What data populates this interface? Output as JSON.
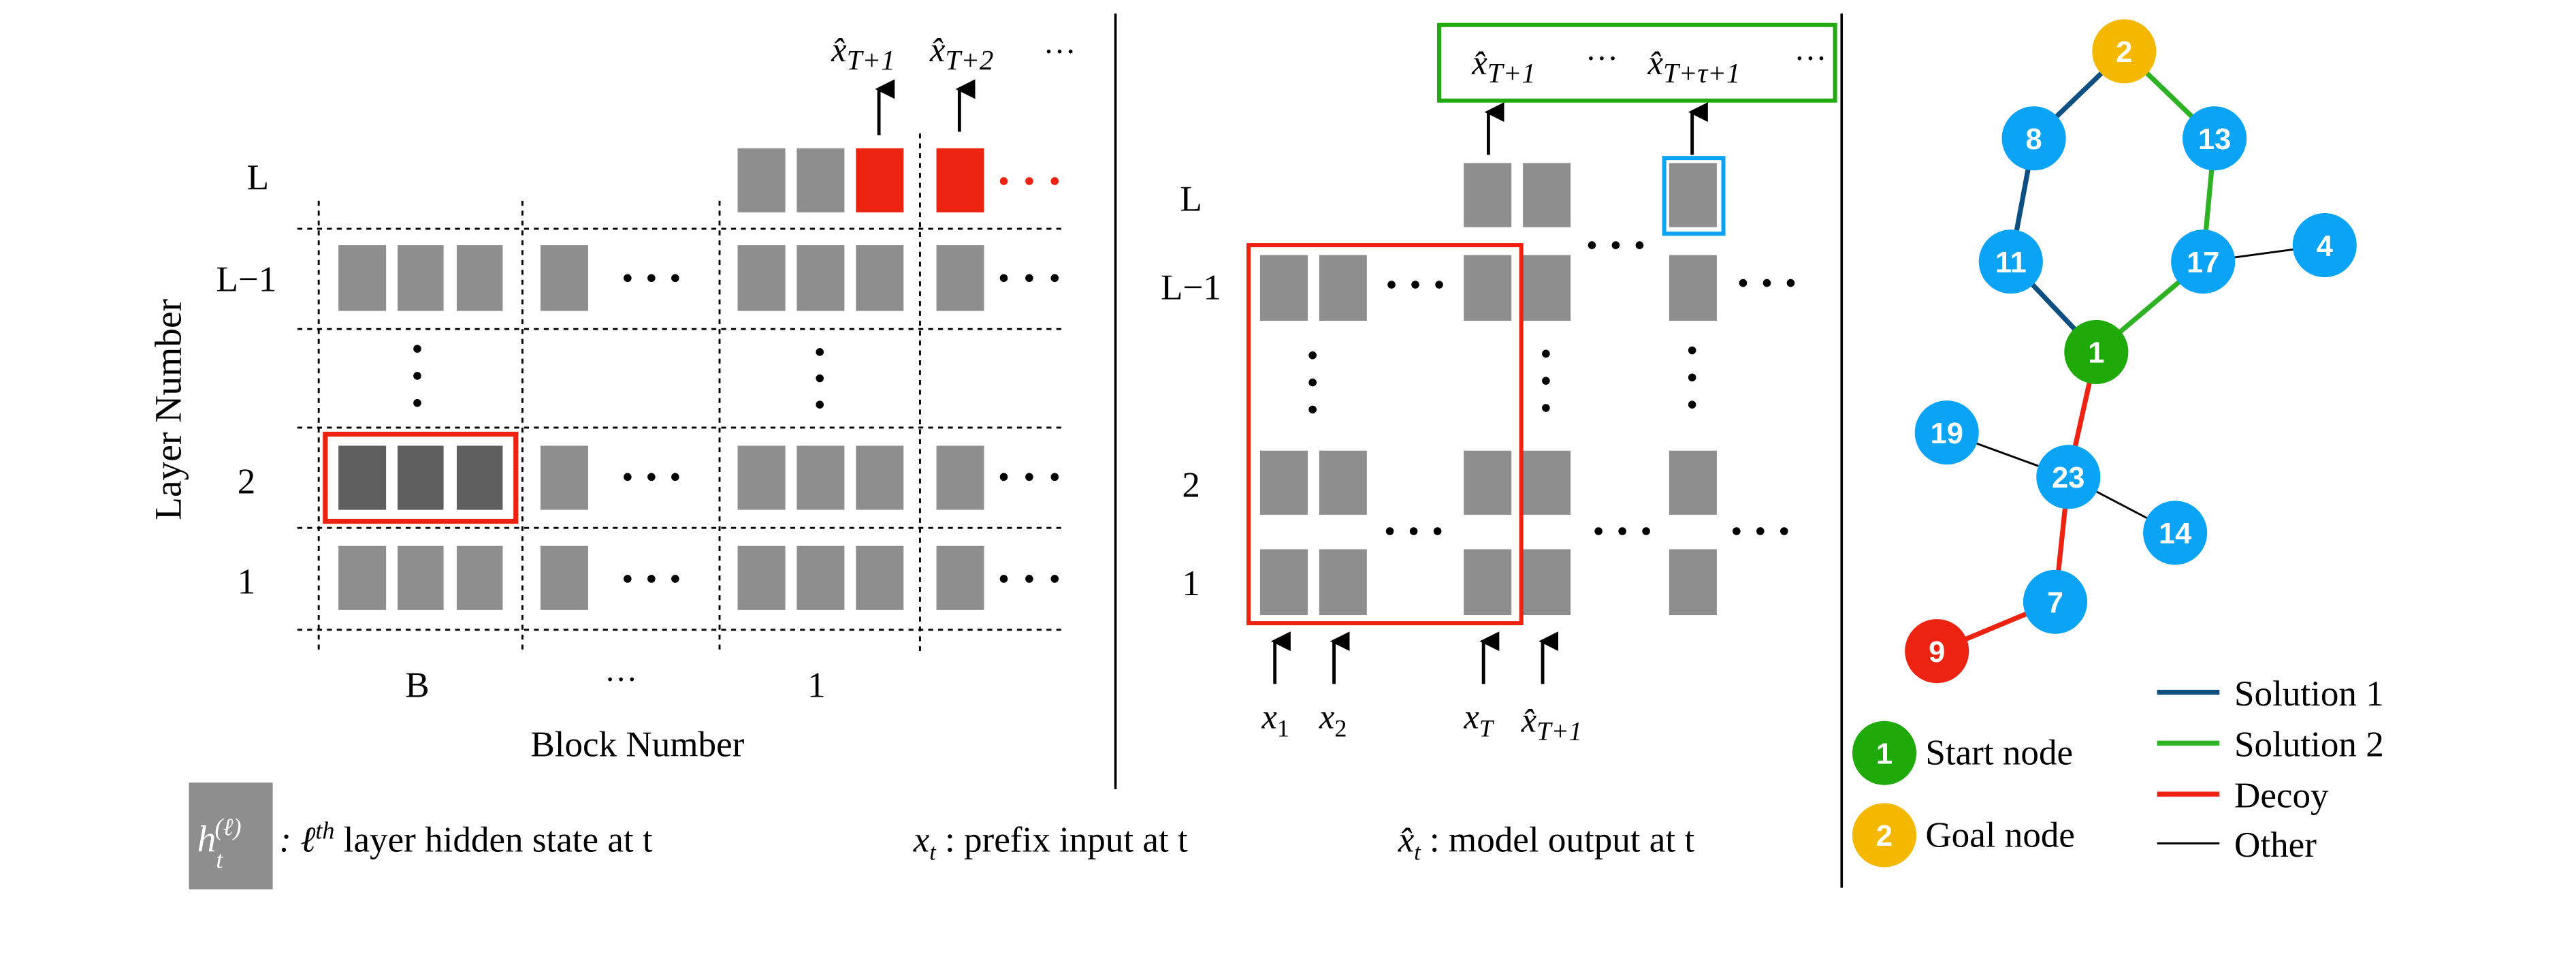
{
  "colors": {
    "hidden_state": "#8e8e8e",
    "hidden_state_dark": "#5f5f5f",
    "highlight_red": "#ee2211",
    "highlight_green": "#22aa11",
    "highlight_blue": "#0aa3f5",
    "node_blue": "#0aa3f5",
    "node_start": "#1faa0a",
    "node_goal": "#f5b800",
    "node_decoy_end": "#ee2211",
    "solution1": "#0d4f80",
    "solution2": "#2db224",
    "decoy": "#ee2211",
    "other": "#000000"
  },
  "panel_left": {
    "y_axis_label": "Layer Number",
    "x_axis_label": "Block Number",
    "row_labels": [
      "L",
      "L−1",
      "2",
      "1"
    ],
    "block_labels": [
      "B",
      "···",
      "1"
    ],
    "outputs": [
      {
        "base": "x̂",
        "sub": "T+1"
      },
      {
        "base": "x̂",
        "sub": "T+2"
      }
    ],
    "outputs_ellipsis": "···"
  },
  "panel_middle": {
    "row_labels": [
      "L",
      "L−1",
      "2",
      "1"
    ],
    "outputs": [
      {
        "base": "x̂",
        "sub": "T+1"
      },
      {
        "base": "x̂",
        "sub": "T+τ+1"
      }
    ],
    "ellipsis": "···",
    "inputs": [
      {
        "base": "x",
        "sub": "1"
      },
      {
        "base": "x",
        "sub": "2"
      },
      {
        "base": "x",
        "sub": "T"
      },
      {
        "base": "x̂",
        "sub": "T+1"
      }
    ]
  },
  "graph": {
    "nodes": [
      {
        "label": "2",
        "type": "goal"
      },
      {
        "label": "8",
        "type": "normal"
      },
      {
        "label": "13",
        "type": "normal"
      },
      {
        "label": "11",
        "type": "normal"
      },
      {
        "label": "17",
        "type": "normal"
      },
      {
        "label": "4",
        "type": "normal"
      },
      {
        "label": "1",
        "type": "start"
      },
      {
        "label": "19",
        "type": "normal"
      },
      {
        "label": "23",
        "type": "normal"
      },
      {
        "label": "14",
        "type": "normal"
      },
      {
        "label": "7",
        "type": "normal"
      },
      {
        "label": "9",
        "type": "decoy_end"
      }
    ],
    "edges": [
      {
        "from": "2",
        "to": "8",
        "type": "solution1"
      },
      {
        "from": "8",
        "to": "11",
        "type": "solution1"
      },
      {
        "from": "11",
        "to": "1",
        "type": "solution1"
      },
      {
        "from": "2",
        "to": "13",
        "type": "solution2"
      },
      {
        "from": "13",
        "to": "17",
        "type": "solution2"
      },
      {
        "from": "17",
        "to": "1",
        "type": "solution2"
      },
      {
        "from": "17",
        "to": "4",
        "type": "other"
      },
      {
        "from": "1",
        "to": "23",
        "type": "decoy"
      },
      {
        "from": "23",
        "to": "7",
        "type": "decoy"
      },
      {
        "from": "7",
        "to": "9",
        "type": "decoy"
      },
      {
        "from": "19",
        "to": "23",
        "type": "other"
      },
      {
        "from": "23",
        "to": "14",
        "type": "other"
      }
    ],
    "legend_nodes": [
      {
        "label": "1",
        "text": "Start node",
        "type": "start"
      },
      {
        "label": "2",
        "text": "Goal node",
        "type": "goal"
      }
    ],
    "legend_edges": [
      {
        "text": "Solution 1",
        "type": "solution1"
      },
      {
        "text": "Solution 2",
        "type": "solution2"
      },
      {
        "text": "Decoy",
        "type": "decoy"
      },
      {
        "text": "Other",
        "type": "other"
      }
    ]
  },
  "legend": {
    "hidden_state_symbol": {
      "base": "h",
      "sub": "t",
      "sup": "(ℓ)"
    },
    "hidden_state_text": ": ℓ",
    "hidden_state_sup": "th",
    "hidden_state_rest": " layer hidden state at t",
    "prefix_symbol": {
      "base": "x",
      "sub": "t"
    },
    "prefix_text": " : prefix input at t",
    "output_symbol": {
      "base": "x̂",
      "sub": "t"
    },
    "output_text": " : model output at t"
  }
}
